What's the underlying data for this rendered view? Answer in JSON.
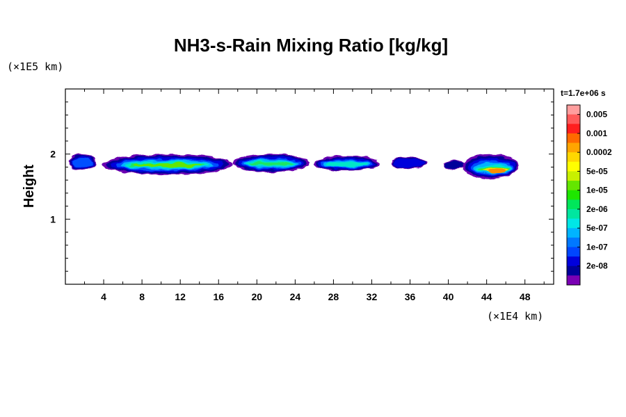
{
  "chart_data": {
    "type": "heatmap",
    "title": "NH3-s-Rain Mixing Ratio [kg/kg]",
    "xlabel": "",
    "x_unit": "(×1E4 km)",
    "ylabel": "Height",
    "y_unit": "(×1E5 km)",
    "time_label": "t=1.7e+06 s",
    "xlim": [
      0,
      51
    ],
    "ylim": [
      0,
      3
    ],
    "x_ticks": [
      4,
      8,
      12,
      16,
      20,
      24,
      28,
      32,
      36,
      40,
      44,
      48
    ],
    "y_ticks": [
      1,
      2
    ],
    "colorbar": {
      "labels": [
        "0.005",
        "0.001",
        "0.0002",
        "5e-05",
        "1e-05",
        "2e-06",
        "5e-07",
        "1e-07",
        "2e-08"
      ],
      "colors_top_to_bottom": [
        "#ff9e9e",
        "#ff5a5a",
        "#ff1e1e",
        "#ff6a00",
        "#ffa500",
        "#ffd700",
        "#ffff00",
        "#c8f000",
        "#64e600",
        "#1ee600",
        "#00e65a",
        "#00e6a0",
        "#00e6e6",
        "#00b4ff",
        "#0078ff",
        "#0046ff",
        "#0000dc",
        "#00009a",
        "#7a00b4"
      ]
    },
    "layers": [
      {
        "x0": 0.4,
        "x1": 3.2,
        "y0": 1.75,
        "y1": 2.0,
        "level": 0.5
      },
      {
        "x0": 3.8,
        "x1": 17.5,
        "y0": 1.68,
        "y1": 2.0,
        "level": 1.1
      },
      {
        "x0": 17.5,
        "x1": 25.5,
        "y0": 1.72,
        "y1": 2.0,
        "level": 1.0
      },
      {
        "x0": 26.0,
        "x1": 32.8,
        "y0": 1.74,
        "y1": 1.97,
        "level": 0.8
      },
      {
        "x0": 34.0,
        "x1": 37.8,
        "y0": 1.77,
        "y1": 1.96,
        "level": 0.4
      },
      {
        "x0": 39.5,
        "x1": 41.8,
        "y0": 1.76,
        "y1": 1.91,
        "level": 0.35
      },
      {
        "x0": 41.5,
        "x1": 47.3,
        "y0": 1.62,
        "y1": 2.0,
        "level": 1.6
      }
    ]
  }
}
